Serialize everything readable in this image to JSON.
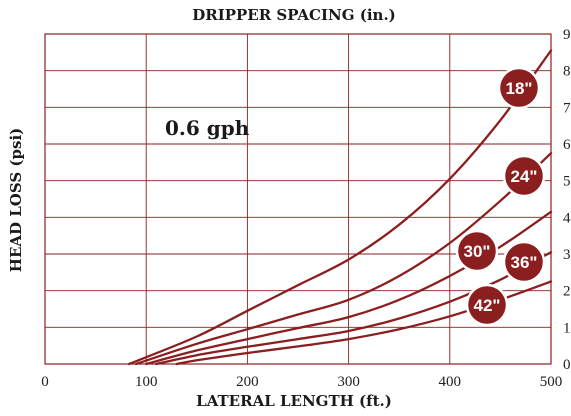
{
  "chart_data": {
    "type": "line",
    "title": "DRIPPER SPACING (in.)",
    "xlabel": "LATERAL LENGTH (ft.)",
    "ylabel": "HEAD LOSS (psi)",
    "annotation": "0.6 gph",
    "xlim": [
      0,
      500
    ],
    "ylim": [
      0,
      9
    ],
    "xticks": [
      "0",
      "100",
      "200",
      "300",
      "400",
      "500"
    ],
    "yticks": [
      "0",
      "1",
      "2",
      "3",
      "4",
      "5",
      "6",
      "7",
      "8",
      "9"
    ],
    "grid": true,
    "line_color": "#8b1e1e",
    "badge_color": "#8b1e1e",
    "series": [
      {
        "name": "18\"",
        "x": [
          83,
          150,
          200,
          250,
          300,
          350,
          400,
          450,
          500
        ],
        "y": [
          0,
          0.75,
          1.45,
          2.15,
          2.85,
          3.8,
          5.05,
          6.65,
          8.55
        ]
      },
      {
        "name": "24\"",
        "x": [
          90,
          150,
          200,
          250,
          300,
          350,
          400,
          450,
          500
        ],
        "y": [
          0,
          0.55,
          0.95,
          1.35,
          1.75,
          2.4,
          3.3,
          4.45,
          5.75
        ]
      },
      {
        "name": "30\"",
        "x": [
          100,
          150,
          200,
          250,
          300,
          350,
          400,
          450,
          500
        ],
        "y": [
          0,
          0.37,
          0.68,
          0.98,
          1.28,
          1.75,
          2.4,
          3.2,
          4.15
        ]
      },
      {
        "name": "36\"",
        "x": [
          110,
          150,
          200,
          250,
          300,
          350,
          400,
          450,
          500
        ],
        "y": [
          0,
          0.24,
          0.47,
          0.68,
          0.9,
          1.24,
          1.7,
          2.3,
          3.05
        ]
      },
      {
        "name": "42\"",
        "x": [
          130,
          150,
          200,
          250,
          300,
          350,
          400,
          450,
          500
        ],
        "y": [
          0,
          0.1,
          0.3,
          0.48,
          0.68,
          0.95,
          1.3,
          1.75,
          2.25
        ]
      }
    ]
  }
}
